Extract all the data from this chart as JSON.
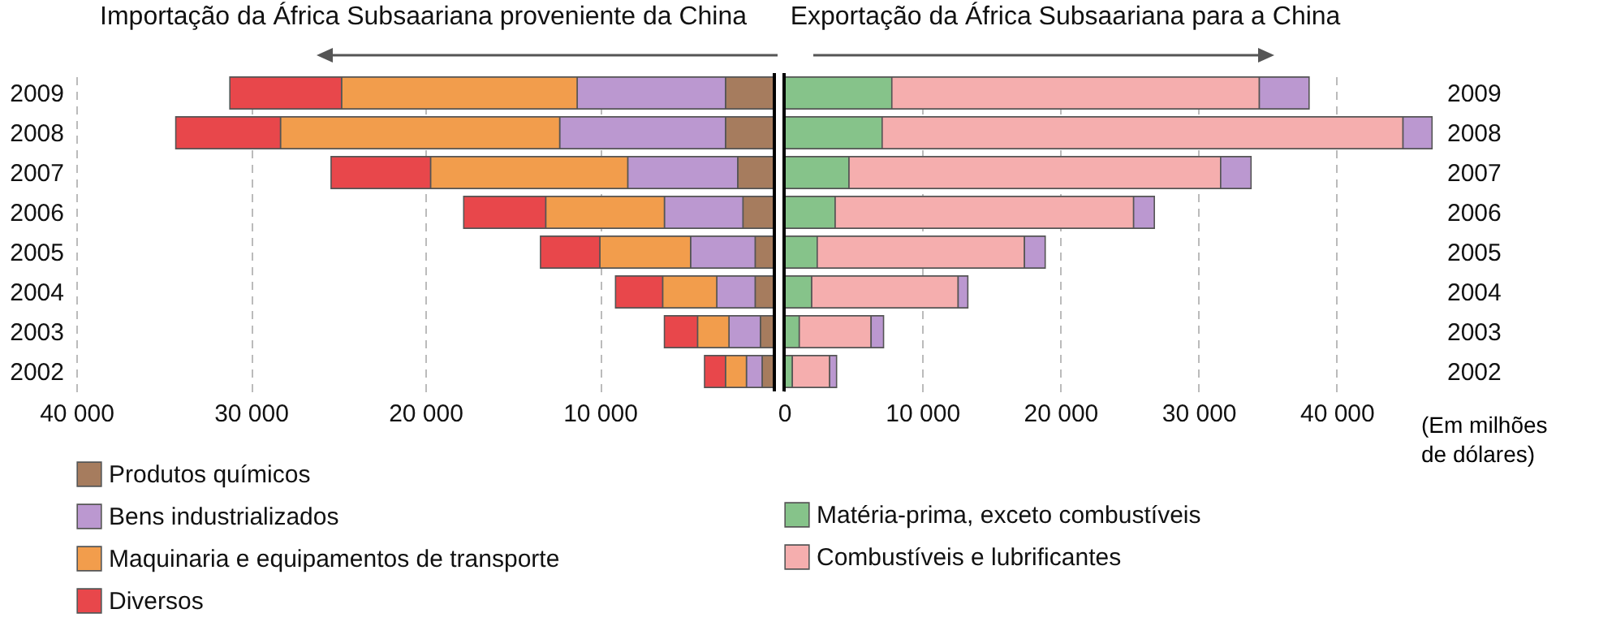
{
  "chart_data": [
    {
      "type": "bar",
      "orientation": "horizontal",
      "stacked": true,
      "title": "Importação da África Subsaariana proveniente da China",
      "categories": [
        "2009",
        "2008",
        "2007",
        "2006",
        "2005",
        "2004",
        "2003",
        "2002"
      ],
      "series": [
        {
          "name": "Produtos químicos",
          "color": "#a67c5e",
          "values": [
            2800,
            2800,
            2100,
            1800,
            1100,
            1100,
            800,
            700
          ]
        },
        {
          "name": "Bens industrializados",
          "color": "#bb98d0",
          "values": [
            8500,
            9500,
            6300,
            4500,
            3700,
            2200,
            1800,
            900
          ]
        },
        {
          "name": "Maquinaria e equipamentos de transporte",
          "color": "#f29d4c",
          "values": [
            13500,
            16000,
            11300,
            6800,
            5200,
            3100,
            1800,
            1200
          ]
        },
        {
          "name": "Diversos",
          "color": "#e8474b",
          "values": [
            6400,
            6000,
            5700,
            4700,
            3400,
            2700,
            1900,
            1200
          ]
        }
      ],
      "xlim": [
        40000,
        0
      ],
      "xticks": [
        {
          "value": 40000,
          "label": "40 000"
        },
        {
          "value": 30000,
          "label": "30 000"
        },
        {
          "value": 20000,
          "label": "20 000"
        },
        {
          "value": 10000,
          "label": "10 000"
        }
      ],
      "grid": "x",
      "legend": "bottom",
      "ref_lines": [
        {
          "axis": "x",
          "value": 0,
          "color": "#000000"
        }
      ]
    },
    {
      "type": "bar",
      "orientation": "horizontal",
      "stacked": true,
      "title": "Exportação da África Subsaariana para a China",
      "xlabel": "(Em milhões de dólares)",
      "categories": [
        "2009",
        "2008",
        "2007",
        "2006",
        "2005",
        "2004",
        "2003",
        "2002"
      ],
      "series": [
        {
          "name": "Matéria-prima, exceto combustíveis",
          "color": "#86c38a",
          "values": [
            7800,
            7100,
            4700,
            3700,
            2400,
            2000,
            1100,
            600
          ]
        },
        {
          "name": "Combustíveis e lubrificantes",
          "color": "#f5aeae",
          "values": [
            26600,
            37700,
            26900,
            21600,
            15000,
            10600,
            5200,
            2700
          ]
        },
        {
          "color": "#bb98d0",
          "values": [
            3600,
            2100,
            2200,
            1500,
            1500,
            700,
            900,
            500
          ]
        }
      ],
      "xlim": [
        0,
        47000
      ],
      "xticks": [
        0,
        {
          "value": 10000,
          "label": "10 000"
        },
        {
          "value": 20000,
          "label": "20 000"
        },
        {
          "value": 30000,
          "label": "30 000"
        },
        {
          "value": 40000,
          "label": "40 000"
        }
      ],
      "grid": "x",
      "legend": "bottom",
      "ref_lines": [
        {
          "axis": "x",
          "value": 0,
          "color": "#000000"
        }
      ]
    }
  ]
}
